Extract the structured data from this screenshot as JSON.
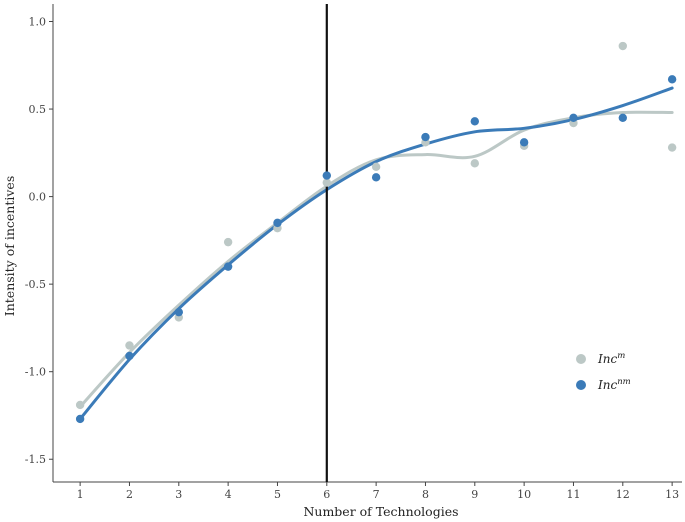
{
  "chart_data": {
    "type": "scatter",
    "xlabel": "Number of Technologies",
    "ylabel": "Intensity of incentives",
    "x_ticks": [
      "1",
      "2",
      "3",
      "4",
      "5",
      "6",
      "7",
      "8",
      "9",
      "10",
      "11",
      "12",
      "13"
    ],
    "y_ticks": [
      "-1.5",
      "-1.0",
      "-0.5",
      "0.0",
      "0.5",
      "1.0"
    ],
    "xlim": [
      0.45,
      13.2
    ],
    "ylim": [
      -1.63,
      1.1
    ],
    "grid": false,
    "legend_position": "bottom-right",
    "vertical_line_x": 6,
    "series": [
      {
        "name": "Inc",
        "name_sup": "m",
        "color": "#bcc8c6",
        "x": [
          1,
          2,
          3,
          4,
          5,
          6,
          7,
          8,
          9,
          10,
          11,
          12,
          13
        ],
        "y": [
          -1.19,
          -0.85,
          -0.69,
          -0.26,
          -0.18,
          0.08,
          0.17,
          0.31,
          0.19,
          0.29,
          0.42,
          0.86,
          0.28
        ],
        "smooth_y": [
          -1.2,
          -0.89,
          -0.62,
          -0.37,
          -0.15,
          0.06,
          0.21,
          0.24,
          0.23,
          0.38,
          0.45,
          0.48,
          0.48
        ]
      },
      {
        "name": "Inc",
        "name_sup": "nm",
        "color": "#3b7bb8",
        "x": [
          1,
          2,
          3,
          4,
          5,
          6,
          7,
          8,
          9,
          10,
          11,
          12,
          13
        ],
        "y": [
          -1.27,
          -0.91,
          -0.66,
          -0.4,
          -0.15,
          0.12,
          0.11,
          0.34,
          0.43,
          0.31,
          0.45,
          0.45,
          0.67
        ],
        "smooth_y": [
          -1.27,
          -0.93,
          -0.64,
          -0.39,
          -0.16,
          0.04,
          0.2,
          0.3,
          0.37,
          0.39,
          0.44,
          0.52,
          0.62
        ]
      }
    ]
  }
}
